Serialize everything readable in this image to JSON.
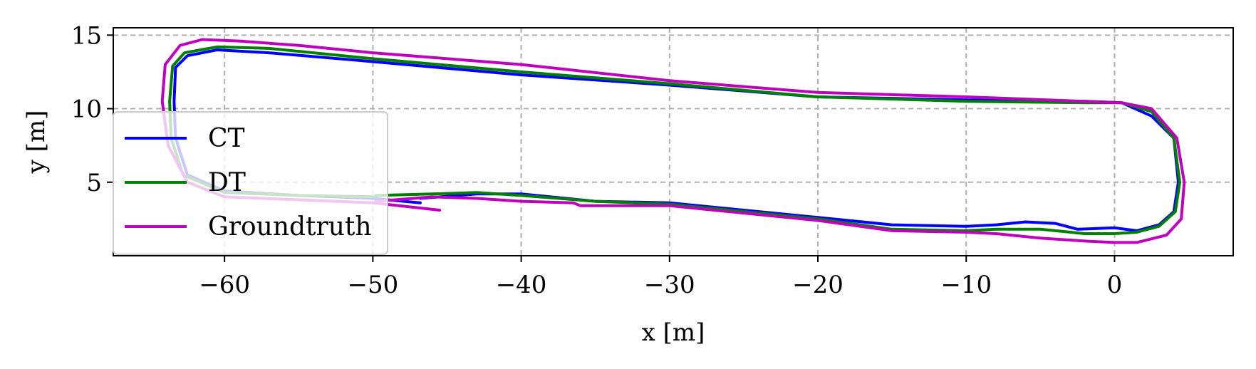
{
  "chart_data": {
    "type": "line",
    "title": "",
    "xlabel": "x [m]",
    "ylabel": "y [m]",
    "xlim": [
      -67.5,
      8
    ],
    "ylim": [
      0,
      15.5
    ],
    "xticks": [
      -60,
      -50,
      -40,
      -30,
      -20,
      -10,
      0
    ],
    "xtick_labels": [
      "−60",
      "−50",
      "−40",
      "−30",
      "−20",
      "−10",
      "0"
    ],
    "yticks": [
      5,
      10,
      15
    ],
    "ytick_labels": [
      "5",
      "10",
      "15"
    ],
    "grid": true,
    "legend": "left",
    "series": [
      {
        "name": "CT",
        "color": "#0000ff",
        "x": [
          -46.8,
          -50,
          -55,
          -60,
          -62.5,
          -63.3,
          -63.4,
          -63.3,
          -62.5,
          -60.5,
          -57,
          -50,
          -40,
          -30,
          -20,
          -10,
          -2,
          0.5,
          2.5,
          4,
          4.3,
          4,
          3,
          1.5,
          0,
          -2.5,
          -4,
          -6,
          -8,
          -10,
          -15,
          -20,
          -30,
          -35,
          -40,
          -43,
          -46.8
        ],
        "y": [
          3.6,
          3.9,
          4.1,
          4.4,
          5.5,
          8,
          10.5,
          12.8,
          13.6,
          14,
          13.8,
          13.2,
          12.3,
          11.6,
          10.8,
          10.6,
          10.5,
          10.4,
          9.5,
          8,
          5,
          3,
          2.1,
          1.7,
          1.9,
          1.8,
          2.2,
          2.3,
          2.1,
          2.0,
          2.1,
          2.6,
          3.6,
          3.7,
          4.2,
          4.2,
          3.9
        ]
      },
      {
        "name": "DT",
        "color": "#008000",
        "x": [
          -49.8,
          -55,
          -60,
          -62.8,
          -63.6,
          -63.7,
          -63.5,
          -62.7,
          -60.5,
          -57,
          -50,
          -40,
          -30,
          -20,
          -10,
          -2,
          0.5,
          2.5,
          4,
          4.4,
          4.1,
          3,
          1.5,
          0,
          -2,
          -5,
          -8,
          -10,
          -15,
          -20,
          -30,
          -35,
          -40,
          -43,
          -46,
          -49.8
        ],
        "y": [
          4.0,
          4.1,
          4.3,
          5.5,
          8,
          10.5,
          12.9,
          13.8,
          14.2,
          14.1,
          13.4,
          12.5,
          11.7,
          10.8,
          10.5,
          10.4,
          10.4,
          9.8,
          8,
          5,
          3,
          2.0,
          1.6,
          1.5,
          1.5,
          1.8,
          1.8,
          1.7,
          1.8,
          2.5,
          3.5,
          3.7,
          4.1,
          4.3,
          4.2,
          4.1
        ]
      },
      {
        "name": "Groundtruth",
        "color": "#bf00bf",
        "x": [
          -45.5,
          -50,
          -55,
          -60,
          -62.5,
          -63.8,
          -64.2,
          -64,
          -63,
          -61.5,
          -59,
          -55,
          -50,
          -40,
          -30,
          -20,
          -10,
          -2,
          0.5,
          2.5,
          4.2,
          4.7,
          4.5,
          3.5,
          1.5,
          0,
          -2,
          -5,
          -8,
          -10,
          -15,
          -20,
          -30,
          -36,
          -36.5,
          -40,
          -43,
          -46,
          -49.8
        ],
        "y": [
          3.1,
          3.6,
          3.8,
          4.0,
          5.0,
          7.5,
          10.5,
          13,
          14.3,
          14.7,
          14.6,
          14.3,
          13.8,
          13,
          11.9,
          11.1,
          10.8,
          10.5,
          10.4,
          10.0,
          8,
          5,
          2.5,
          1.4,
          0.9,
          0.9,
          1.0,
          1.2,
          1.5,
          1.6,
          1.7,
          2.4,
          3.4,
          3.4,
          3.6,
          3.7,
          3.9,
          4.0,
          3.7
        ]
      }
    ]
  }
}
